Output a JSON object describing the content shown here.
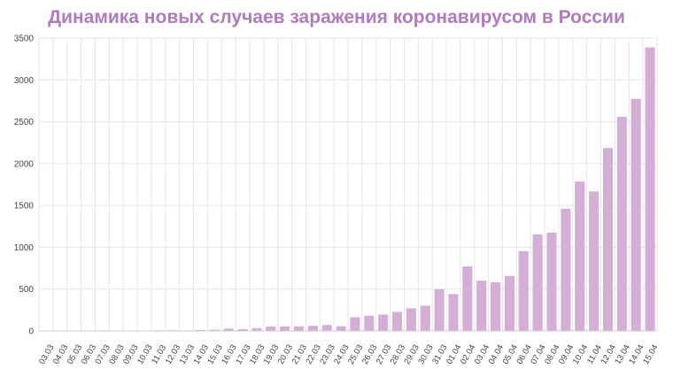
{
  "chart_data": {
    "type": "bar",
    "title": "Динамика новых случаев заражения коронавирусом в России",
    "xlabel": "",
    "ylabel": "",
    "ylim": [
      0,
      3500
    ],
    "yticks": [
      0,
      500,
      1000,
      1500,
      2000,
      2500,
      3000,
      3500
    ],
    "grid": true,
    "legend": "none",
    "colors": {
      "bar": "#d4aed6",
      "title": "#b07bbd",
      "grid": "#e6e6e6"
    },
    "categories": [
      "03.03",
      "04.03",
      "05.03",
      "06.03",
      "07.03",
      "08.03",
      "09.03",
      "10.03",
      "11.03",
      "12.03",
      "13.03",
      "14.03",
      "15.03",
      "16.03",
      "17.03",
      "18.03",
      "19.03",
      "20.03",
      "21.03",
      "22.03",
      "23.03",
      "24.03",
      "25.03",
      "26.03",
      "27.03",
      "28.03",
      "29.03",
      "30.03",
      "31.03",
      "01.04",
      "02.04",
      "03.04",
      "04.04",
      "05.04",
      "06.04",
      "07.04",
      "08.04",
      "09.04",
      "10.04",
      "11.04",
      "12.04",
      "13.04",
      "14.04",
      "15.04"
    ],
    "values": [
      1,
      0,
      0,
      0,
      6,
      0,
      0,
      3,
      7,
      8,
      6,
      11,
      14,
      29,
      21,
      33,
      52,
      53,
      54,
      61,
      71,
      57,
      163,
      182,
      196,
      228,
      270,
      302,
      500,
      440,
      771,
      601,
      582,
      658,
      954,
      1154,
      1175,
      1459,
      1786,
      1667,
      2186,
      2558,
      2774,
      3388
    ]
  }
}
